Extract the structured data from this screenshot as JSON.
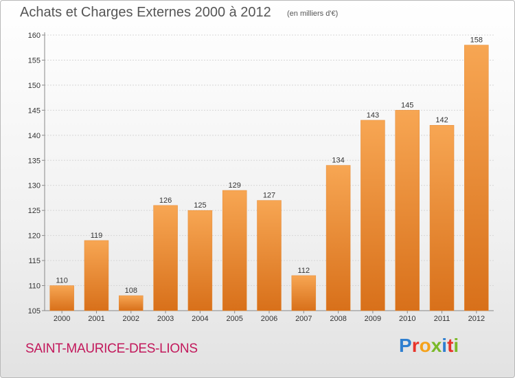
{
  "header": {
    "title": "Achats et Charges Externes 2000 à 2012",
    "subtitle": "(en milliers d'€)"
  },
  "footer": {
    "commune": "SAINT-MAURICE-DES-LIONS",
    "brand_letters": [
      "P",
      "r",
      "o",
      "x",
      "i",
      "t",
      "i"
    ],
    "brand_colors": [
      "#2f7fd0",
      "#e8332a",
      "#f5a21b",
      "#7ab929",
      "#2f7fd0",
      "#e8332a",
      "#7ab929"
    ]
  },
  "chart_data": {
    "type": "bar",
    "categories": [
      "2000",
      "2001",
      "2002",
      "2003",
      "2004",
      "2005",
      "2006",
      "2007",
      "2008",
      "2009",
      "2010",
      "2011",
      "2012"
    ],
    "values": [
      110,
      119,
      108,
      126,
      125,
      129,
      127,
      112,
      134,
      143,
      145,
      142,
      158
    ],
    "ylim": [
      105,
      160
    ],
    "yticks": [
      105,
      110,
      115,
      120,
      125,
      130,
      135,
      140,
      145,
      150,
      155,
      160
    ],
    "grid": true,
    "bar_color": "#f0943a"
  }
}
